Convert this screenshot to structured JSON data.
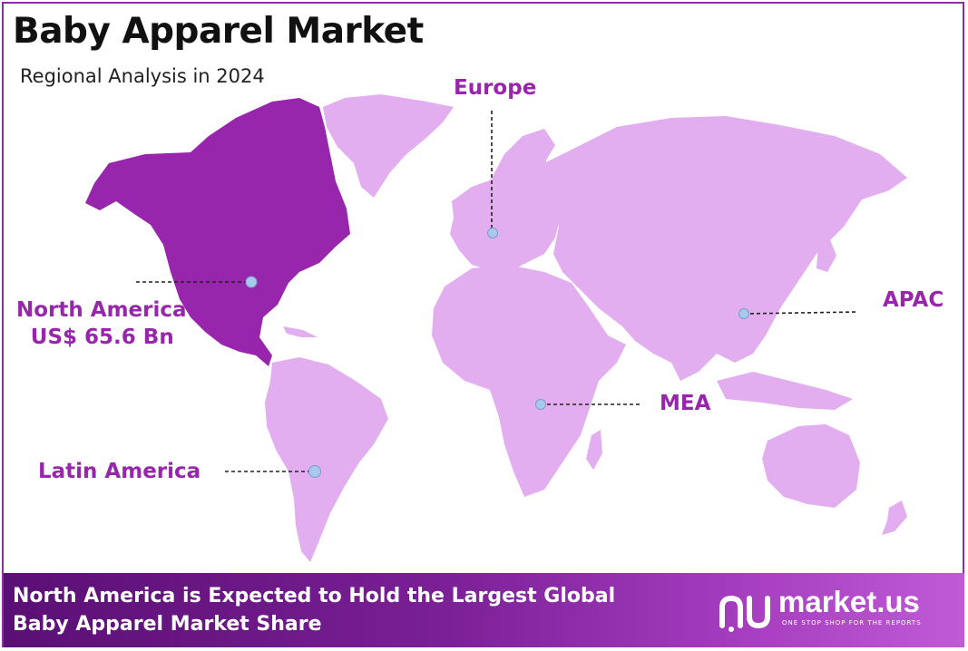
{
  "title": "Baby Apparel Market",
  "subtitle": "Regional Analysis in 2024",
  "colors": {
    "highlight_region": "#9826ac",
    "other_regions": "#e2aef0",
    "label": "#9826ac",
    "marker": "#a8c8ec"
  },
  "regions": {
    "north_america": {
      "name": "North America",
      "value": "US$ 65.6 Bn",
      "highlighted": true
    },
    "europe": {
      "name": "Europe"
    },
    "apac": {
      "name": "APAC"
    },
    "mea": {
      "name": "MEA"
    },
    "latin_america": {
      "name": "Latin America"
    }
  },
  "footer": {
    "line1": "North America is Expected to Hold the Largest Global",
    "line2": "Baby Apparel Market Share"
  },
  "logo": {
    "name": "market.us",
    "tagline": "ONE STOP SHOP FOR THE REPORTS"
  }
}
